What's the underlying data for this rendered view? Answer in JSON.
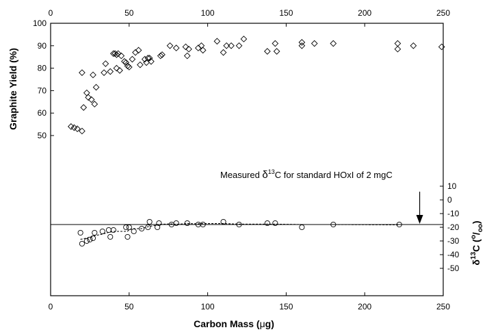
{
  "chart_data": {
    "type": "scatter",
    "x_axis": {
      "label_prefix": "Carbon Mass (",
      "label_mu": "μ",
      "label_suffix": "g)",
      "range": [
        0,
        250
      ],
      "ticks": [
        0,
        50,
        100,
        150,
        200,
        250
      ],
      "tick_labels": [
        "0",
        "50",
        "100",
        "150",
        "200",
        "250"
      ],
      "mirrored_top": true
    },
    "y_axis_left": {
      "label": "Graphite Yield  (%)",
      "range": [
        50,
        100
      ],
      "ticks": [
        50,
        60,
        70,
        80,
        90,
        100
      ],
      "tick_labels": [
        "50",
        "60",
        "70",
        "80",
        "90",
        "100"
      ]
    },
    "y_axis_right": {
      "label_delta": "δ",
      "label_sup": "13",
      "label_mid": "C (",
      "label_sup2": "o",
      "label_sub": "/",
      "label_sub2": "oo",
      "label_end": ")",
      "range": [
        -50,
        10
      ],
      "ticks": [
        10,
        0,
        -10,
        -20,
        -30,
        -40,
        -50
      ],
      "tick_labels": [
        "10",
        "0",
        "-10",
        "-20",
        "-30",
        "-40",
        "-50"
      ]
    },
    "annotation": {
      "text_before": "Measured ",
      "delta": "δ",
      "sup": "13",
      "text_after": "C for standard HOxI of 2 mgC",
      "arrow_x": 235
    },
    "reference_line": {
      "y": -18
    },
    "fit_line_style": "dashed",
    "grid": false,
    "series": [
      {
        "marker": "diamond",
        "axis": "left",
        "x": [
          13,
          15,
          17,
          20,
          20,
          21,
          23,
          24,
          26,
          27,
          28,
          29,
          34,
          35,
          38,
          40,
          41,
          42,
          42,
          43,
          44,
          45,
          47,
          48,
          49,
          50,
          52,
          54,
          56,
          57,
          60,
          61,
          62,
          63,
          64,
          70,
          71,
          76,
          80,
          86,
          87,
          88,
          94,
          96,
          97,
          106,
          110,
          112,
          115,
          120,
          123,
          138,
          143,
          144,
          160,
          160,
          168,
          180,
          221,
          221,
          231,
          249
        ],
        "y": [
          54,
          53.5,
          53,
          52,
          78,
          62.5,
          69,
          67,
          66,
          77,
          64,
          71.5,
          78,
          82,
          78.5,
          86.5,
          86.5,
          80,
          86,
          86.5,
          79,
          85.5,
          83,
          82.5,
          81,
          80.5,
          84,
          87,
          88,
          81.5,
          84,
          82.5,
          84.5,
          84.5,
          83,
          85.5,
          86,
          90,
          89,
          89.5,
          85.5,
          88.5,
          89,
          90,
          88,
          92,
          87,
          90,
          90,
          90,
          93,
          87.5,
          91,
          87.5,
          91.5,
          90,
          91,
          91,
          91,
          88.5,
          90,
          89.5
        ]
      },
      {
        "marker": "circle",
        "axis": "right",
        "x": [
          19,
          20,
          23,
          25,
          27,
          28,
          33,
          37,
          38,
          40,
          48,
          49,
          50,
          53,
          58,
          62,
          63,
          68,
          69,
          77,
          80,
          87,
          94,
          97,
          110,
          120,
          138,
          143,
          160,
          180,
          222
        ],
        "y": [
          -24,
          -32,
          -30,
          -29,
          -28,
          -24,
          -23,
          -22,
          -27,
          -22,
          -20,
          -27,
          -20,
          -23,
          -21,
          -20,
          -16,
          -20,
          -17,
          -18,
          -17,
          -17,
          -18,
          -18,
          -16,
          -18,
          -17,
          -17,
          -20,
          -18,
          -18
        ]
      }
    ]
  }
}
